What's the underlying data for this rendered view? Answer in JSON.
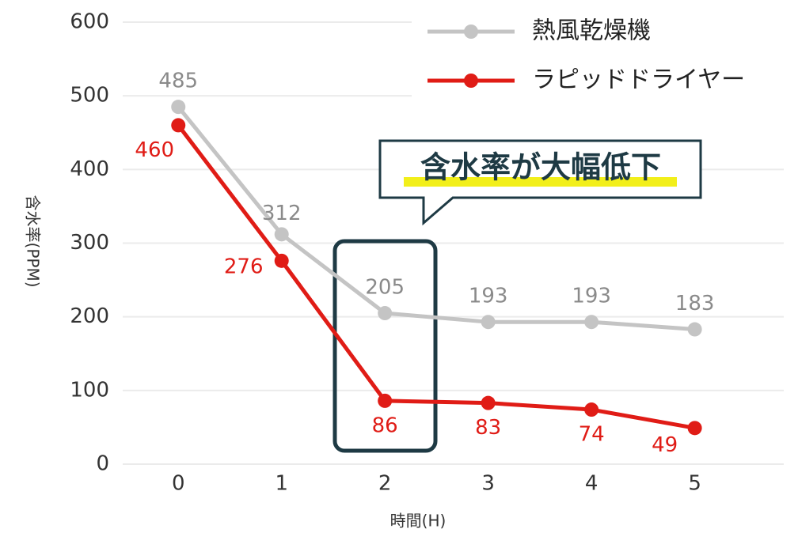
{
  "chart_data": {
    "type": "line",
    "x": [
      0,
      1,
      2,
      3,
      4,
      5
    ],
    "xlim": [
      -0.5,
      5.8
    ],
    "xticks": [
      0,
      1,
      2,
      3,
      4,
      5
    ],
    "ylim": [
      0,
      600
    ],
    "yticks": [
      0,
      100,
      200,
      300,
      400,
      500,
      600
    ],
    "grid": true,
    "xlabel": "時間(H)",
    "ylabel": "含水率(PPM)",
    "legend": "top-right",
    "annotation": "含水率が大幅低下",
    "series": [
      {
        "name": "熱風乾燥機",
        "color": "#c4c4c4",
        "values": [
          485,
          312,
          205,
          193,
          193,
          183
        ]
      },
      {
        "name": "ラピッドドライヤー",
        "color": "#e01c16",
        "values": [
          460,
          276,
          86,
          83,
          74,
          49
        ]
      }
    ]
  }
}
